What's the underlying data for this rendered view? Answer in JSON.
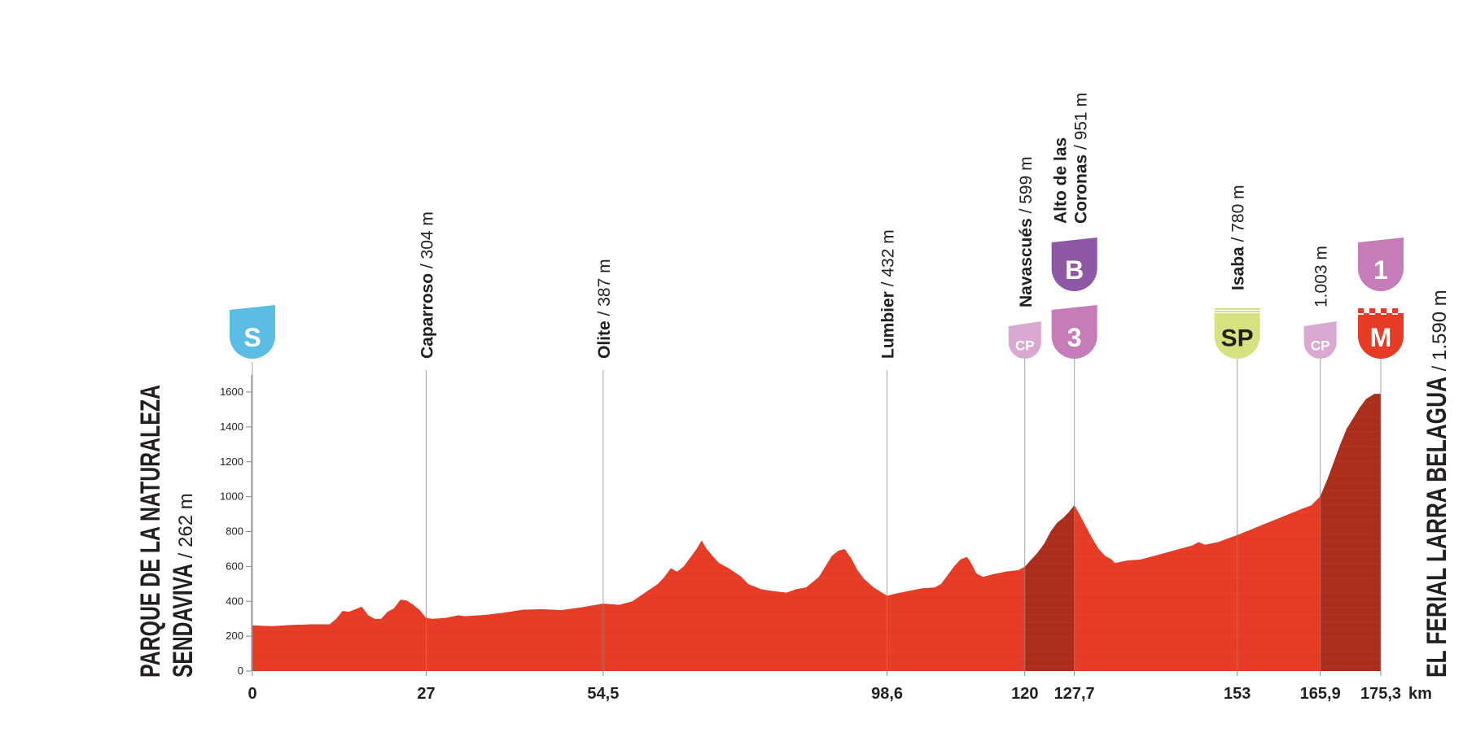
{
  "colors": {
    "profile": "#e63b25",
    "profile_dark": "#ab2d1c",
    "start_badge": "#5bbde4",
    "cat3_badge": "#c57cb8",
    "catB_badge": "#8e58a4",
    "cat1_badge": "#c57cb8",
    "cp_badge": "#d9a9d2",
    "sp_badge": "#d6e27f",
    "finish_badge": "#e63b25",
    "guide": "#8a8a8a",
    "text": "#231f20"
  },
  "start_label": {
    "line1": "PARQUE DE LA NATURALEZA",
    "line2": "SENDAVIVA",
    "alt": " / 262 m"
  },
  "finish_label": {
    "name": "EL FERIAL LARRA BELAGUA",
    "alt": " / 1.590 m"
  },
  "km_unit": "km",
  "chart_data": {
    "type": "area",
    "title": "",
    "xlabel": "km",
    "ylabel": "",
    "xlim": [
      0,
      175.3
    ],
    "ylim": [
      0,
      1700
    ],
    "y_ticks": [
      0,
      200,
      400,
      600,
      800,
      1000,
      1200,
      1400,
      1600
    ],
    "x_ticks": [
      "0",
      "27",
      "54,5",
      "98,6",
      "120",
      "127,7",
      "153",
      "165,9",
      "175,3"
    ],
    "x_tick_values": [
      0,
      27,
      54.5,
      98.6,
      120,
      127.7,
      153,
      165.9,
      175.3
    ],
    "dark_segments": [
      [
        120,
        127.7
      ],
      [
        165.9,
        175.3
      ]
    ],
    "profile": [
      [
        0,
        262
      ],
      [
        3,
        258
      ],
      [
        6,
        265
      ],
      [
        9,
        268
      ],
      [
        12,
        268
      ],
      [
        13,
        300
      ],
      [
        14,
        345
      ],
      [
        15,
        340
      ],
      [
        16,
        355
      ],
      [
        17,
        370
      ],
      [
        18,
        320
      ],
      [
        19,
        300
      ],
      [
        20,
        300
      ],
      [
        21,
        340
      ],
      [
        22,
        360
      ],
      [
        23,
        410
      ],
      [
        24,
        405
      ],
      [
        25,
        380
      ],
      [
        26,
        350
      ],
      [
        27,
        304
      ],
      [
        28,
        300
      ],
      [
        30,
        305
      ],
      [
        32,
        320
      ],
      [
        33,
        315
      ],
      [
        36,
        322
      ],
      [
        39,
        335
      ],
      [
        42,
        352
      ],
      [
        45,
        355
      ],
      [
        48,
        350
      ],
      [
        51,
        365
      ],
      [
        54.5,
        387
      ],
      [
        57,
        380
      ],
      [
        59,
        400
      ],
      [
        61,
        450
      ],
      [
        63,
        500
      ],
      [
        64,
        540
      ],
      [
        65,
        590
      ],
      [
        66,
        570
      ],
      [
        67,
        600
      ],
      [
        68,
        650
      ],
      [
        69,
        700
      ],
      [
        69.8,
        750
      ],
      [
        70.5,
        705
      ],
      [
        71.5,
        660
      ],
      [
        72.5,
        620
      ],
      [
        74,
        590
      ],
      [
        76,
        540
      ],
      [
        77,
        500
      ],
      [
        79,
        470
      ],
      [
        81,
        458
      ],
      [
        83,
        450
      ],
      [
        84.5,
        470
      ],
      [
        86,
        480
      ],
      [
        88,
        540
      ],
      [
        89,
        600
      ],
      [
        90,
        660
      ],
      [
        91,
        690
      ],
      [
        92,
        700
      ],
      [
        93,
        650
      ],
      [
        94,
        580
      ],
      [
        95,
        530
      ],
      [
        96.5,
        480
      ],
      [
        98.6,
        432
      ],
      [
        100,
        445
      ],
      [
        102,
        460
      ],
      [
        104,
        475
      ],
      [
        106,
        480
      ],
      [
        107,
        500
      ],
      [
        108,
        550
      ],
      [
        109,
        600
      ],
      [
        110,
        640
      ],
      [
        111,
        655
      ],
      [
        111.5,
        630
      ],
      [
        112.5,
        560
      ],
      [
        113.5,
        540
      ],
      [
        115,
        555
      ],
      [
        117,
        570
      ],
      [
        119,
        580
      ],
      [
        120,
        599
      ],
      [
        122,
        680
      ],
      [
        123,
        730
      ],
      [
        124,
        800
      ],
      [
        125,
        850
      ],
      [
        126,
        880
      ],
      [
        126.8,
        910
      ],
      [
        127.7,
        951
      ],
      [
        128.5,
        900
      ],
      [
        129.5,
        830
      ],
      [
        130.5,
        760
      ],
      [
        131.5,
        700
      ],
      [
        132.5,
        660
      ],
      [
        133.5,
        640
      ],
      [
        134,
        620
      ],
      [
        136,
        635
      ],
      [
        138,
        640
      ],
      [
        140,
        660
      ],
      [
        142,
        680
      ],
      [
        144,
        700
      ],
      [
        146,
        720
      ],
      [
        147,
        740
      ],
      [
        148,
        725
      ],
      [
        150,
        740
      ],
      [
        153,
        780
      ],
      [
        155,
        810
      ],
      [
        157,
        840
      ],
      [
        159,
        870
      ],
      [
        161,
        900
      ],
      [
        163,
        930
      ],
      [
        164.5,
        950
      ],
      [
        165.9,
        1003
      ],
      [
        167,
        1100
      ],
      [
        168,
        1200
      ],
      [
        169,
        1300
      ],
      [
        170,
        1390
      ],
      [
        171,
        1450
      ],
      [
        172,
        1510
      ],
      [
        173,
        1560
      ],
      [
        174.3,
        1590
      ],
      [
        175.3,
        1590
      ]
    ]
  },
  "places": [
    {
      "km": 27,
      "name": "Caparroso",
      "alt": " / 304 m"
    },
    {
      "km": 54.5,
      "name": "Olite",
      "alt": " / 387 m"
    },
    {
      "km": 98.6,
      "name": "Lumbier",
      "alt": " / 432 m"
    },
    {
      "km": 120,
      "name": "Navascués",
      "alt": " / 599 m"
    },
    {
      "km": 127.7,
      "name": "Alto de las",
      "name2": "Coronas",
      "alt": " / 951 m"
    },
    {
      "km": 153,
      "name": "Isaba",
      "alt": " / 780 m"
    },
    {
      "km": 165.9,
      "name": "",
      "alt": "1.003 m"
    }
  ],
  "badges": [
    {
      "km": 0,
      "text": "S",
      "kind": "start"
    },
    {
      "km": 120,
      "text": "CP",
      "kind": "cp"
    },
    {
      "km": 127.7,
      "text": "3",
      "kind": "cat3"
    },
    {
      "km": 127.7,
      "text": "B",
      "kind": "catB"
    },
    {
      "km": 153,
      "text": "SP",
      "kind": "sp"
    },
    {
      "km": 165.9,
      "text": "CP",
      "kind": "cp"
    },
    {
      "km": 175.3,
      "text": "M",
      "kind": "finish"
    },
    {
      "km": 175.3,
      "text": "1",
      "kind": "cat1"
    }
  ]
}
